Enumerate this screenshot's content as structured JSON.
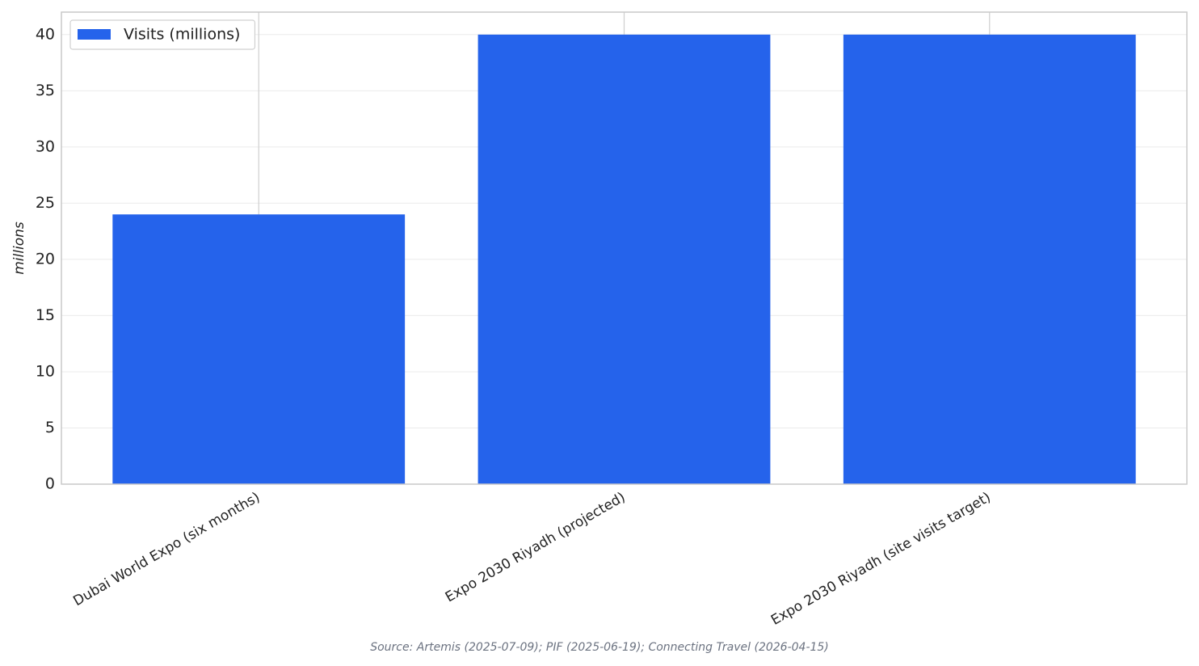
{
  "chart_data": {
    "type": "bar",
    "categories": [
      "Dubai World Expo (six months)",
      "Expo 2030 Riyadh (projected)",
      "Expo 2030 Riyadh (site visits target)"
    ],
    "series": [
      {
        "name": "Visits (millions)",
        "color": "#2563eb",
        "values": [
          24,
          40,
          40
        ]
      }
    ],
    "y_label": "millions",
    "ylim": [
      0,
      42
    ],
    "yticks": [
      0,
      5,
      10,
      15,
      20,
      25,
      30,
      35,
      40
    ],
    "grid": true,
    "legend": "upper-left",
    "source": "Source: Artemis (2025-07-09); PIF (2025-06-19); Connecting Travel (2026-04-15)"
  }
}
